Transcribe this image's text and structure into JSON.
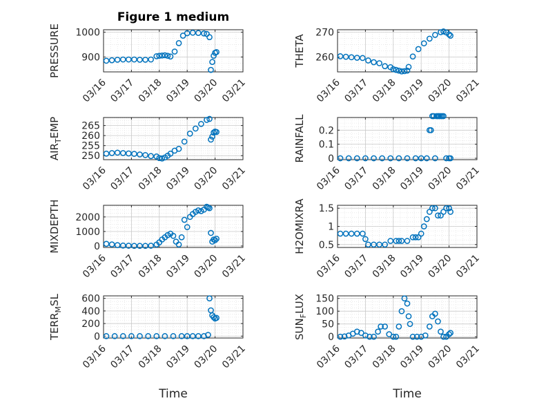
{
  "figure": {
    "title": "Figure 1 medium"
  },
  "style": {
    "marker_color": "#0072BD"
  },
  "time_axis": {
    "range": [
      "03/16",
      "03/21"
    ],
    "ticks": [
      "03/16",
      "03/17",
      "03/18",
      "03/19",
      "03/20",
      "03/21"
    ],
    "label": "Time"
  },
  "chart_data": [
    {
      "type": "scatter",
      "ylabel": "PRESSURE",
      "title": "Figure 1 medium",
      "yticks": [
        900,
        1000
      ],
      "ylim": [
        840,
        1010
      ],
      "grid": true,
      "x_unit": "days since 03/16",
      "series": [
        {
          "x": [
            0.1,
            0.3,
            0.5,
            0.7,
            0.9,
            1.1,
            1.3,
            1.5,
            1.7,
            1.9,
            2.0,
            2.1,
            2.2,
            2.3,
            2.4,
            2.55,
            2.7,
            2.85,
            3.0,
            3.2,
            3.4,
            3.6,
            3.7,
            3.8,
            3.85,
            3.9,
            3.95,
            4.0,
            4.05
          ],
          "y": [
            885,
            887,
            889,
            890,
            890,
            890,
            889,
            889,
            890,
            903,
            905,
            906,
            907,
            905,
            902,
            922,
            956,
            986,
            996,
            998,
            997,
            995,
            993,
            980,
            848,
            880,
            905,
            917,
            920
          ]
        }
      ]
    },
    {
      "type": "scatter",
      "ylabel": "THETA",
      "yticks": [
        260,
        270
      ],
      "ylim": [
        254,
        271
      ],
      "grid": true,
      "x_unit": "days since 03/16",
      "series": [
        {
          "x": [
            0.1,
            0.3,
            0.5,
            0.7,
            0.9,
            1.1,
            1.3,
            1.5,
            1.7,
            1.9,
            2.0,
            2.1,
            2.2,
            2.3,
            2.4,
            2.5,
            2.55,
            2.7,
            2.9,
            3.1,
            3.3,
            3.5,
            3.7,
            3.8,
            3.9,
            4.0,
            4.05
          ],
          "y": [
            260.3,
            260.1,
            259.9,
            259.7,
            259.6,
            258.6,
            257.9,
            257.5,
            256.3,
            255.9,
            255.1,
            254.8,
            254.5,
            254.2,
            254.3,
            254.5,
            256.0,
            260.2,
            263.2,
            265.5,
            267.4,
            268.9,
            270.0,
            270.3,
            269.9,
            269.1,
            268.6
          ]
        }
      ]
    },
    {
      "type": "scatter",
      "ylabel": "AIR_TEMP",
      "yticks": [
        250,
        255,
        260,
        265
      ],
      "ylim": [
        248,
        269
      ],
      "grid": true,
      "x_unit": "days since 03/16",
      "series": [
        {
          "x": [
            0.1,
            0.3,
            0.5,
            0.7,
            0.9,
            1.1,
            1.3,
            1.5,
            1.7,
            1.9,
            2.0,
            2.1,
            2.2,
            2.3,
            2.4,
            2.55,
            2.7,
            2.9,
            3.1,
            3.3,
            3.5,
            3.7,
            3.8,
            3.85,
            3.9,
            3.95,
            4.0,
            4.05
          ],
          "y": [
            251.0,
            251.3,
            251.5,
            251.3,
            251.1,
            250.9,
            250.6,
            250.3,
            249.8,
            249.6,
            248.8,
            248.6,
            249.1,
            250.0,
            251.0,
            252.5,
            253.4,
            257.0,
            261.0,
            263.5,
            265.8,
            267.8,
            268.3,
            258.0,
            259.5,
            261.5,
            262.0,
            261.8
          ]
        }
      ]
    },
    {
      "type": "scatter",
      "ylabel": "RAINFALL",
      "yticks": [
        0,
        0.1,
        0.2
      ],
      "ylim": [
        -0.01,
        0.29
      ],
      "grid": true,
      "x_unit": "days since 03/16",
      "series": [
        {
          "x": [
            0.1,
            0.4,
            0.7,
            1.0,
            1.3,
            1.6,
            1.9,
            2.2,
            2.5,
            2.8,
            3.0,
            3.2,
            3.3,
            3.35,
            3.4,
            3.45,
            3.5,
            3.55,
            3.6,
            3.65,
            3.7,
            3.75,
            3.8,
            3.9,
            4.0,
            4.05
          ],
          "y": [
            0,
            0,
            0,
            0,
            0,
            0,
            0,
            0,
            0,
            0,
            0,
            0,
            0.2,
            0.2,
            0.3,
            0.3,
            0,
            0.3,
            0.3,
            0.3,
            0.3,
            0.3,
            0.3,
            0,
            0,
            0
          ]
        }
      ]
    },
    {
      "type": "scatter",
      "ylabel": "MIXDEPTH",
      "yticks": [
        0,
        1000,
        2000
      ],
      "ylim": [
        -100,
        2800
      ],
      "grid": true,
      "x_unit": "days since 03/16",
      "series": [
        {
          "x": [
            0.1,
            0.3,
            0.5,
            0.7,
            0.9,
            1.1,
            1.3,
            1.5,
            1.7,
            1.9,
            2.0,
            2.1,
            2.2,
            2.3,
            2.4,
            2.5,
            2.6,
            2.7,
            2.8,
            2.9,
            3.0,
            3.1,
            3.2,
            3.3,
            3.4,
            3.5,
            3.6,
            3.7,
            3.75,
            3.8,
            3.85,
            3.9,
            3.95,
            4.0,
            4.05
          ],
          "y": [
            150,
            110,
            60,
            30,
            20,
            10,
            10,
            10,
            20,
            100,
            250,
            450,
            600,
            750,
            850,
            700,
            300,
            100,
            600,
            1800,
            1300,
            2000,
            2200,
            2350,
            2450,
            2400,
            2500,
            2700,
            2650,
            2600,
            900,
            300,
            450,
            400,
            500
          ]
        }
      ]
    },
    {
      "type": "scatter",
      "ylabel": "H2OMIXRA",
      "yticks": [
        0.5,
        1,
        1.5
      ],
      "ylim": [
        0.42,
        1.58
      ],
      "grid": true,
      "x_unit": "days since 03/16",
      "series": [
        {
          "x": [
            0.1,
            0.3,
            0.5,
            0.7,
            0.9,
            1.0,
            1.1,
            1.3,
            1.5,
            1.7,
            1.9,
            2.1,
            2.2,
            2.3,
            2.5,
            2.7,
            2.8,
            2.9,
            3.0,
            3.1,
            3.2,
            3.3,
            3.4,
            3.5,
            3.6,
            3.7,
            3.8,
            3.9,
            4.0,
            4.05
          ],
          "y": [
            0.8,
            0.8,
            0.8,
            0.8,
            0.8,
            0.65,
            0.5,
            0.5,
            0.5,
            0.5,
            0.6,
            0.6,
            0.6,
            0.6,
            0.6,
            0.7,
            0.7,
            0.7,
            0.8,
            1.0,
            1.2,
            1.4,
            1.5,
            1.5,
            1.3,
            1.3,
            1.4,
            1.5,
            1.5,
            1.4
          ]
        }
      ]
    },
    {
      "type": "scatter",
      "ylabel": "TERR_MSL",
      "yticks": [
        0,
        200,
        400,
        600
      ],
      "ylim": [
        -30,
        640
      ],
      "grid": true,
      "x_unit": "days since 03/16",
      "series": [
        {
          "x": [
            0.1,
            0.4,
            0.7,
            1.0,
            1.3,
            1.6,
            1.9,
            2.2,
            2.5,
            2.8,
            3.0,
            3.2,
            3.4,
            3.6,
            3.75,
            3.8,
            3.85,
            3.9,
            3.95,
            4.0,
            4.05
          ],
          "y": [
            0,
            0,
            0,
            0,
            0,
            0,
            0,
            0,
            0,
            0,
            0,
            0,
            0,
            0,
            20,
            600,
            410,
            330,
            300,
            280,
            290
          ]
        }
      ]
    },
    {
      "type": "scatter",
      "ylabel": "SUN_FLUX",
      "yticks": [
        0,
        50,
        100,
        150
      ],
      "ylim": [
        -5,
        160
      ],
      "grid": true,
      "x_unit": "days since 03/16",
      "series": [
        {
          "x": [
            0.1,
            0.25,
            0.4,
            0.55,
            0.7,
            0.85,
            1.0,
            1.15,
            1.3,
            1.45,
            1.55,
            1.7,
            1.85,
            2.0,
            2.1,
            2.2,
            2.3,
            2.4,
            2.5,
            2.55,
            2.6,
            2.7,
            2.85,
            3.0,
            3.15,
            3.3,
            3.4,
            3.5,
            3.6,
            3.7,
            3.8,
            3.9,
            4.0,
            4.05
          ],
          "y": [
            0,
            1,
            5,
            12,
            20,
            15,
            5,
            0,
            0,
            20,
            40,
            40,
            10,
            0,
            0,
            40,
            100,
            150,
            130,
            80,
            50,
            0,
            0,
            0,
            5,
            40,
            80,
            90,
            60,
            20,
            0,
            0,
            10,
            15
          ]
        }
      ]
    }
  ]
}
